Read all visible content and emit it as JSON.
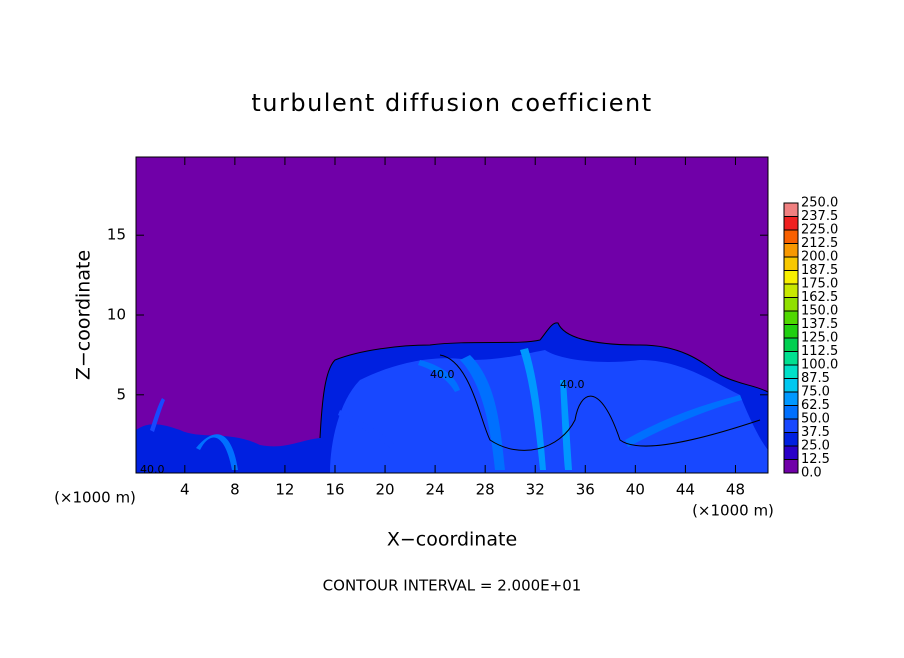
{
  "chart_data": {
    "type": "contour",
    "title": "turbulent diffusion coefficient",
    "x_label": "X−coordinate",
    "y_label": "Z−coordinate",
    "x_unit_left": "(×1000 m)",
    "x_unit_right": "(×1000 m)",
    "footer": "CONTOUR INTERVAL = 2.000E+01",
    "contour_labels": [
      "40.0",
      "40.0",
      "40.0"
    ],
    "xlim": [
      0.1,
      50.6
    ],
    "ylim": [
      0.1,
      19.9
    ],
    "xticks": [
      4,
      8,
      12,
      16,
      20,
      24,
      28,
      32,
      36,
      40,
      44,
      48
    ],
    "yticks": [
      5,
      10,
      15
    ],
    "colorbar": {
      "levels": [
        {
          "value": 0,
          "label": "0.0"
        },
        {
          "value": 12.5,
          "label": "12.5"
        },
        {
          "value": 25,
          "label": "25.0"
        },
        {
          "value": 37.5,
          "label": "37.5"
        },
        {
          "value": 50,
          "label": "50.0"
        },
        {
          "value": 62.5,
          "label": "62.5"
        },
        {
          "value": 75,
          "label": "75.0"
        },
        {
          "value": 87.5,
          "label": "87.5"
        },
        {
          "value": 100,
          "label": "100.0"
        },
        {
          "value": 112.5,
          "label": "112.5"
        },
        {
          "value": 125,
          "label": "125.0"
        },
        {
          "value": 137.5,
          "label": "137.5"
        },
        {
          "value": 150,
          "label": "150.0"
        },
        {
          "value": 162.5,
          "label": "162.5"
        },
        {
          "value": 175,
          "label": "175.0"
        },
        {
          "value": 187.5,
          "label": "187.5"
        },
        {
          "value": 200,
          "label": "200.0"
        },
        {
          "value": 212.5,
          "label": "212.5"
        },
        {
          "value": 225,
          "label": "225.0"
        },
        {
          "value": 237.5,
          "label": "237.5"
        },
        {
          "value": 250,
          "label": "250.0"
        }
      ],
      "colors": [
        "#7000a8",
        "#2a00c8",
        "#0020e0",
        "#1848ff",
        "#0070ff",
        "#0098ff",
        "#00c8f0",
        "#00e0c8",
        "#00e090",
        "#00d050",
        "#20d010",
        "#50d800",
        "#90e000",
        "#c8e800",
        "#f8f000",
        "#f8c800",
        "#f89800",
        "#f86000",
        "#f02020",
        "#f08080"
      ]
    }
  }
}
